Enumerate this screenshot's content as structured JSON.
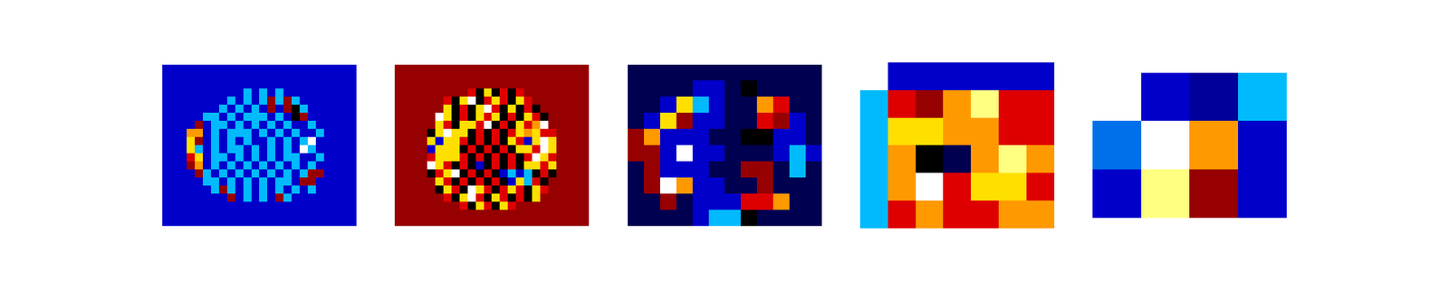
{
  "chart_data": [
    {
      "type": "heatmap",
      "tick_labels": false,
      "color_range": [
        0,
        9
      ],
      "cells": [
        [
          1,
          1,
          1,
          1,
          1,
          1,
          1,
          1,
          1,
          1,
          1,
          1,
          1,
          1,
          1,
          1,
          1,
          1,
          1,
          1,
          1,
          1,
          1,
          1
        ],
        [
          1,
          1,
          1,
          1,
          1,
          1,
          1,
          1,
          1,
          1,
          1,
          1,
          1,
          1,
          1,
          1,
          1,
          1,
          1,
          1,
          1,
          1,
          1,
          1
        ],
        [
          1,
          1,
          1,
          1,
          1,
          1,
          1,
          1,
          1,
          1,
          1,
          1,
          1,
          1,
          1,
          1,
          1,
          1,
          1,
          1,
          1,
          1,
          1,
          1
        ],
        [
          1,
          1,
          1,
          1,
          1,
          1,
          1,
          1,
          1,
          1,
          2,
          1,
          2,
          1,
          2,
          1,
          1,
          1,
          1,
          1,
          1,
          1,
          1,
          1
        ],
        [
          1,
          1,
          1,
          1,
          1,
          1,
          1,
          1,
          2,
          1,
          2,
          1,
          2,
          8,
          2,
          8,
          2,
          1,
          1,
          1,
          1,
          1,
          1,
          1
        ],
        [
          1,
          1,
          1,
          1,
          1,
          1,
          1,
          2,
          1,
          2,
          1,
          2,
          1,
          8,
          1,
          8,
          9,
          2,
          1,
          1,
          1,
          1,
          1,
          1
        ],
        [
          1,
          1,
          1,
          1,
          1,
          2,
          2,
          1,
          2,
          1,
          2,
          2,
          2,
          1,
          2,
          1,
          9,
          8,
          1,
          1,
          1,
          1,
          1,
          1
        ],
        [
          1,
          1,
          1,
          1,
          8,
          1,
          2,
          2,
          1,
          2,
          1,
          2,
          1,
          2,
          1,
          2,
          1,
          1,
          2,
          1,
          1,
          1,
          1,
          1
        ],
        [
          1,
          1,
          1,
          6,
          6,
          1,
          2,
          1,
          2,
          2,
          2,
          1,
          2,
          1,
          2,
          1,
          2,
          1,
          1,
          2,
          1,
          1,
          1,
          1
        ],
        [
          1,
          1,
          1,
          5,
          8,
          1,
          2,
          1,
          2,
          1,
          2,
          1,
          1,
          2,
          1,
          2,
          1,
          2,
          3,
          1,
          1,
          1,
          1,
          1
        ],
        [
          1,
          1,
          1,
          5,
          2,
          1,
          2,
          1,
          2,
          2,
          1,
          2,
          1,
          2,
          1,
          2,
          1,
          3,
          2,
          1,
          1,
          1,
          1,
          1
        ],
        [
          1,
          1,
          1,
          7,
          5,
          1,
          2,
          2,
          1,
          2,
          1,
          2,
          1,
          2,
          1,
          2,
          2,
          1,
          1,
          2,
          1,
          1,
          1,
          1
        ],
        [
          1,
          1,
          1,
          8,
          6,
          1,
          2,
          1,
          2,
          1,
          2,
          1,
          2,
          1,
          2,
          1,
          2,
          1,
          2,
          1,
          1,
          1,
          1,
          1
        ],
        [
          1,
          1,
          1,
          1,
          8,
          2,
          1,
          2,
          1,
          2,
          1,
          2,
          1,
          2,
          1,
          2,
          1,
          2,
          8,
          8,
          1,
          1,
          1,
          1
        ],
        [
          1,
          1,
          1,
          1,
          1,
          2,
          2,
          1,
          2,
          1,
          2,
          1,
          2,
          1,
          2,
          2,
          1,
          8,
          8,
          1,
          1,
          1,
          1,
          1
        ],
        [
          1,
          1,
          1,
          1,
          1,
          1,
          2,
          8,
          2,
          1,
          2,
          1,
          2,
          1,
          2,
          1,
          2,
          1,
          2,
          1,
          1,
          1,
          1,
          1
        ],
        [
          1,
          1,
          1,
          1,
          1,
          1,
          1,
          1,
          8,
          1,
          2,
          1,
          2,
          1,
          8,
          2,
          1,
          1,
          1,
          1,
          1,
          1,
          1,
          1
        ],
        [
          1,
          1,
          1,
          1,
          1,
          1,
          1,
          1,
          1,
          1,
          1,
          1,
          1,
          1,
          1,
          1,
          1,
          1,
          1,
          1,
          1,
          1,
          1,
          1
        ],
        [
          1,
          1,
          1,
          1,
          1,
          1,
          1,
          1,
          1,
          1,
          1,
          1,
          1,
          1,
          1,
          1,
          1,
          1,
          1,
          1,
          1,
          1,
          1,
          1
        ],
        [
          1,
          1,
          1,
          1,
          1,
          1,
          1,
          1,
          1,
          1,
          1,
          1,
          1,
          1,
          1,
          1,
          1,
          1,
          1,
          1,
          1,
          1,
          1,
          1
        ]
      ]
    },
    {
      "type": "heatmap",
      "tick_labels": false,
      "color_range": [
        0,
        9
      ],
      "cells": [
        [
          8,
          8,
          8,
          8,
          8,
          8,
          8,
          8,
          8,
          8,
          8,
          8,
          8,
          8,
          8,
          8,
          8,
          8,
          8,
          8,
          8,
          8,
          8,
          8
        ],
        [
          8,
          8,
          8,
          8,
          8,
          8,
          8,
          8,
          8,
          8,
          8,
          8,
          8,
          8,
          8,
          8,
          8,
          8,
          8,
          8,
          8,
          8,
          8,
          8
        ],
        [
          8,
          8,
          8,
          8,
          8,
          8,
          8,
          8,
          8,
          8,
          8,
          8,
          8,
          8,
          8,
          8,
          8,
          8,
          8,
          8,
          8,
          8,
          8,
          8
        ],
        [
          8,
          8,
          8,
          8,
          8,
          8,
          8,
          8,
          8,
          7,
          9,
          5,
          9,
          7,
          9,
          7,
          8,
          8,
          8,
          8,
          8,
          8,
          8,
          8
        ],
        [
          8,
          8,
          8,
          8,
          8,
          8,
          7,
          9,
          5,
          3,
          9,
          7,
          5,
          7,
          9,
          5,
          7,
          8,
          8,
          8,
          8,
          8,
          8,
          8
        ],
        [
          8,
          8,
          8,
          8,
          8,
          8,
          5,
          9,
          7,
          9,
          5,
          3,
          7,
          9,
          5,
          9,
          7,
          9,
          8,
          8,
          8,
          8,
          8,
          8
        ],
        [
          8,
          8,
          8,
          8,
          8,
          3,
          5,
          9,
          7,
          9,
          5,
          7,
          5,
          9,
          7,
          9,
          5,
          7,
          9,
          8,
          8,
          8,
          8,
          8
        ],
        [
          8,
          8,
          8,
          8,
          8,
          5,
          7,
          9,
          5,
          5,
          7,
          3,
          9,
          7,
          9,
          5,
          7,
          6,
          3,
          8,
          8,
          8,
          8,
          8
        ],
        [
          8,
          8,
          8,
          8,
          9,
          5,
          3,
          5,
          5,
          9,
          7,
          9,
          7,
          9,
          7,
          5,
          6,
          5,
          7,
          7,
          8,
          8,
          8,
          8
        ],
        [
          8,
          8,
          8,
          8,
          5,
          1,
          5,
          5,
          7,
          9,
          7,
          9,
          7,
          9,
          5,
          7,
          1,
          5,
          3,
          5,
          8,
          8,
          8,
          8
        ],
        [
          8,
          8,
          8,
          8,
          1,
          5,
          5,
          5,
          9,
          7,
          9,
          7,
          9,
          7,
          9,
          5,
          5,
          7,
          3,
          5,
          8,
          8,
          8,
          8
        ],
        [
          8,
          8,
          8,
          8,
          7,
          5,
          5,
          5,
          7,
          9,
          7,
          9,
          7,
          9,
          7,
          9,
          7,
          3,
          5,
          7,
          8,
          8,
          8,
          8
        ],
        [
          8,
          8,
          8,
          8,
          3,
          5,
          7,
          9,
          7,
          9,
          1,
          9,
          7,
          9,
          7,
          9,
          5,
          5,
          7,
          5,
          8,
          8,
          8,
          8
        ],
        [
          8,
          8,
          8,
          8,
          9,
          7,
          5,
          3,
          9,
          7,
          9,
          7,
          9,
          1,
          2,
          1,
          2,
          9,
          7,
          9,
          8,
          8,
          8,
          8
        ],
        [
          8,
          8,
          8,
          8,
          8,
          5,
          7,
          9,
          7,
          9,
          7,
          9,
          7,
          9,
          1,
          5,
          2,
          7,
          9,
          8,
          8,
          8,
          8,
          8
        ],
        [
          8,
          8,
          8,
          8,
          8,
          9,
          5,
          7,
          9,
          3,
          5,
          7,
          9,
          7,
          5,
          7,
          9,
          5,
          7,
          8,
          8,
          8,
          8,
          8
        ],
        [
          8,
          8,
          8,
          8,
          8,
          8,
          7,
          9,
          5,
          3,
          7,
          9,
          5,
          7,
          9,
          7,
          9,
          5,
          8,
          8,
          8,
          8,
          8,
          8
        ],
        [
          8,
          8,
          8,
          8,
          8,
          8,
          8,
          8,
          7,
          9,
          5,
          7,
          9,
          5,
          7,
          8,
          8,
          8,
          8,
          8,
          8,
          8,
          8,
          8
        ],
        [
          8,
          8,
          8,
          8,
          8,
          8,
          8,
          8,
          8,
          8,
          8,
          8,
          8,
          8,
          8,
          8,
          8,
          8,
          8,
          8,
          8,
          8,
          8,
          8
        ],
        [
          8,
          8,
          8,
          8,
          8,
          8,
          8,
          8,
          8,
          8,
          8,
          8,
          8,
          8,
          8,
          8,
          8,
          8,
          8,
          8,
          8,
          8,
          8,
          8
        ]
      ]
    },
    {
      "type": "heatmap",
      "tick_labels": false,
      "color_range": [
        0,
        9
      ],
      "cells": [
        [
          0,
          0,
          0,
          0,
          0,
          0,
          0,
          0,
          0,
          0,
          0,
          0
        ],
        [
          0,
          0,
          0,
          0,
          1,
          1,
          0,
          9,
          0,
          0,
          0,
          0
        ],
        [
          0,
          0,
          1,
          5,
          2,
          1,
          0,
          0,
          6,
          7,
          0,
          0
        ],
        [
          0,
          1,
          5,
          8,
          1,
          1,
          0,
          0,
          7,
          8,
          1,
          0
        ],
        [
          8,
          6,
          1,
          1,
          1,
          0,
          0,
          9,
          9,
          1,
          1,
          0
        ],
        [
          8,
          8,
          1,
          3,
          1,
          1,
          0,
          0,
          0,
          1,
          2,
          1
        ],
        [
          0,
          8,
          1,
          1,
          1,
          0,
          0,
          8,
          8,
          0,
          2,
          0
        ],
        [
          0,
          8,
          3,
          6,
          1,
          1,
          0,
          0,
          8,
          0,
          0,
          0
        ],
        [
          0,
          0,
          8,
          0,
          1,
          1,
          1,
          7,
          7,
          6,
          0,
          0
        ],
        [
          0,
          0,
          0,
          0,
          1,
          2,
          2,
          9,
          0,
          0,
          0,
          0
        ]
      ]
    },
    {
      "type": "heatmap",
      "tick_labels": false,
      "color_range": [
        0,
        9
      ],
      "cells": [
        [
          null,
          1,
          1,
          1,
          1,
          1,
          1
        ],
        [
          2,
          7,
          8,
          6,
          4,
          7,
          7
        ],
        [
          2,
          5,
          5,
          6,
          6,
          7,
          7
        ],
        [
          2,
          6,
          9,
          0,
          6,
          4,
          6
        ],
        [
          2,
          6,
          3,
          7,
          5,
          5,
          7
        ],
        [
          2,
          7,
          6,
          7,
          7,
          6,
          6
        ]
      ]
    },
    {
      "type": "heatmap",
      "tick_labels": false,
      "color_range": [
        0,
        9
      ],
      "cells": [
        [
          null,
          1,
          0.6,
          2
        ],
        [
          1.6,
          3,
          6,
          1
        ],
        [
          1,
          4,
          8,
          1
        ]
      ]
    }
  ]
}
